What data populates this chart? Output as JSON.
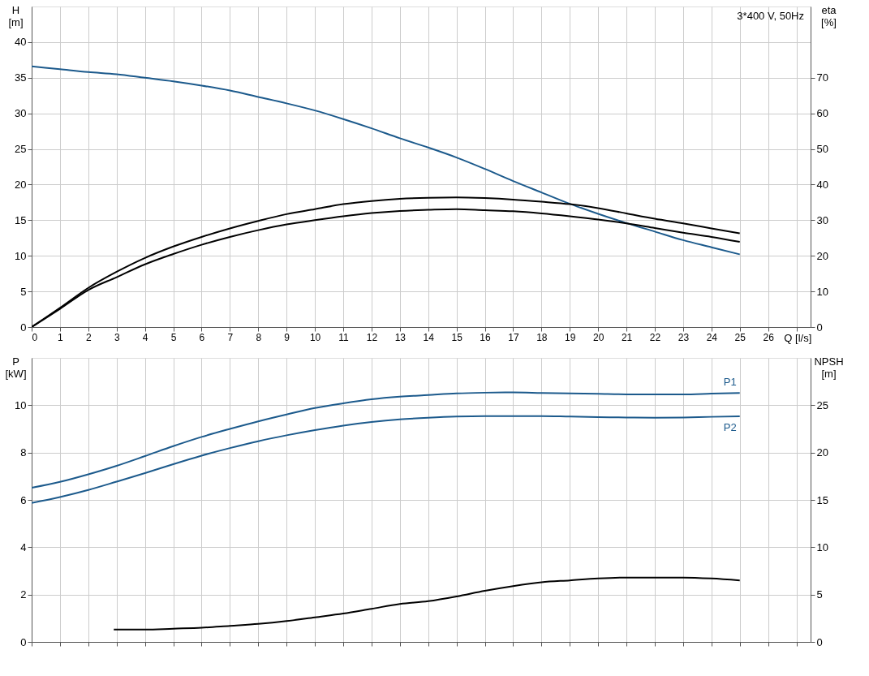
{
  "chart_data": [
    {
      "type": "line",
      "xlabel": "Q [l/s]",
      "ylabel": "H [m]",
      "y2label": "eta [%]",
      "annotations": [
        "3*400 V, 50Hz"
      ],
      "x": [
        0,
        1,
        2,
        3,
        4,
        5,
        6,
        7,
        8,
        9,
        10,
        11,
        12,
        13,
        14,
        15,
        16,
        17,
        18,
        19,
        20,
        21,
        22,
        23,
        24,
        25
      ],
      "xlim": [
        0,
        27.5
      ],
      "xticks": [
        0,
        1,
        2,
        3,
        4,
        5,
        6,
        7,
        8,
        9,
        10,
        11,
        12,
        13,
        14,
        15,
        16,
        17,
        18,
        19,
        20,
        21,
        22,
        23,
        24,
        25,
        26,
        {
          "value": 27,
          "label": null
        }
      ],
      "ylim": [
        0,
        45
      ],
      "yticks": [
        0,
        5,
        10,
        15,
        20,
        25,
        30,
        35,
        40
      ],
      "y2lim": [
        0,
        90
      ],
      "y2ticks": [
        0,
        10,
        20,
        30,
        40,
        50,
        60,
        70
      ],
      "grid": true,
      "marker": "none",
      "line_style": "solid",
      "series": [
        {
          "color": "#1c5a8c",
          "values": [
            36.6,
            36.2,
            35.8,
            35.5,
            35.0,
            34.5,
            33.9,
            33.2,
            32.3,
            31.4,
            30.4,
            29.2,
            27.9,
            26.5,
            25.2,
            23.8,
            22.2,
            20.5,
            18.9,
            17.3,
            15.9,
            14.6,
            13.4,
            12.2,
            11.2,
            10.2
          ]
        },
        {
          "color": "#000000",
          "axis": "y2",
          "values": [
            0,
            5.4,
            11.0,
            15.5,
            19.4,
            22.6,
            25.3,
            27.7,
            29.8,
            31.7,
            33.1,
            34.5,
            35.4,
            36.0,
            36.3,
            36.4,
            36.2,
            35.8,
            35.2,
            34.5,
            33.4,
            31.9,
            30.4,
            29.1,
            27.7,
            26.3
          ]
        },
        {
          "color": "#000000",
          "axis": "y2",
          "values": [
            0,
            5.1,
            10.4,
            14.0,
            17.6,
            20.5,
            23.1,
            25.3,
            27.2,
            28.8,
            30.0,
            31.1,
            32.0,
            32.6,
            32.9,
            33.1,
            32.8,
            32.5,
            31.9,
            31.1,
            30.2,
            29.1,
            27.8,
            26.5,
            25.3,
            23.9
          ]
        }
      ]
    },
    {
      "type": "line",
      "ylabel": "P [kW]",
      "y2label": "NPSH [m]",
      "x": [
        0,
        1,
        2,
        3,
        4,
        5,
        6,
        7,
        8,
        9,
        10,
        11,
        12,
        13,
        14,
        15,
        16,
        17,
        18,
        19,
        20,
        21,
        22,
        23,
        24,
        25
      ],
      "xlim": [
        0,
        27.5
      ],
      "xticks": [
        0,
        1,
        2,
        3,
        4,
        5,
        6,
        7,
        8,
        9,
        10,
        11,
        12,
        13,
        14,
        15,
        16,
        17,
        18,
        19,
        20,
        21,
        22,
        23,
        24,
        25,
        26,
        27
      ],
      "ylim": [
        0,
        12
      ],
      "yticks": [
        0,
        2,
        4,
        6,
        8,
        10
      ],
      "y2lim": [
        0,
        30
      ],
      "y2ticks": [
        0,
        5,
        10,
        15,
        20,
        25
      ],
      "tick_labels": "y",
      "grid": true,
      "marker": "none",
      "line_style": "solid",
      "series": [
        {
          "name": "P1",
          "color": "#1c5a8c",
          "values": [
            6.51,
            6.76,
            7.08,
            7.44,
            7.85,
            8.27,
            8.66,
            9.0,
            9.32,
            9.61,
            9.88,
            10.08,
            10.25,
            10.36,
            10.43,
            10.5,
            10.53,
            10.54,
            10.52,
            10.5,
            10.48,
            10.46,
            10.46,
            10.46,
            10.49,
            10.52
          ]
        },
        {
          "name": "P2",
          "color": "#1c5a8c",
          "values": [
            5.87,
            6.12,
            6.42,
            6.77,
            7.13,
            7.51,
            7.87,
            8.19,
            8.48,
            8.73,
            8.95,
            9.14,
            9.29,
            9.4,
            9.47,
            9.52,
            9.54,
            9.54,
            9.54,
            9.52,
            9.5,
            9.48,
            9.47,
            9.48,
            9.51,
            9.53
          ]
        },
        {
          "color": "#000000",
          "axis": "y2",
          "x": [
            2.9,
            4,
            5,
            6,
            7,
            8,
            9,
            10,
            11,
            12,
            13,
            14,
            15,
            16,
            17,
            18,
            19,
            20,
            21,
            22,
            23,
            24,
            25
          ],
          "values": [
            1.3,
            1.3,
            1.4,
            1.5,
            1.7,
            1.9,
            2.2,
            2.6,
            3.0,
            3.5,
            4.0,
            4.3,
            4.8,
            5.4,
            5.9,
            6.3,
            6.5,
            6.7,
            6.8,
            6.8,
            6.8,
            6.7,
            6.5
          ]
        }
      ]
    }
  ]
}
